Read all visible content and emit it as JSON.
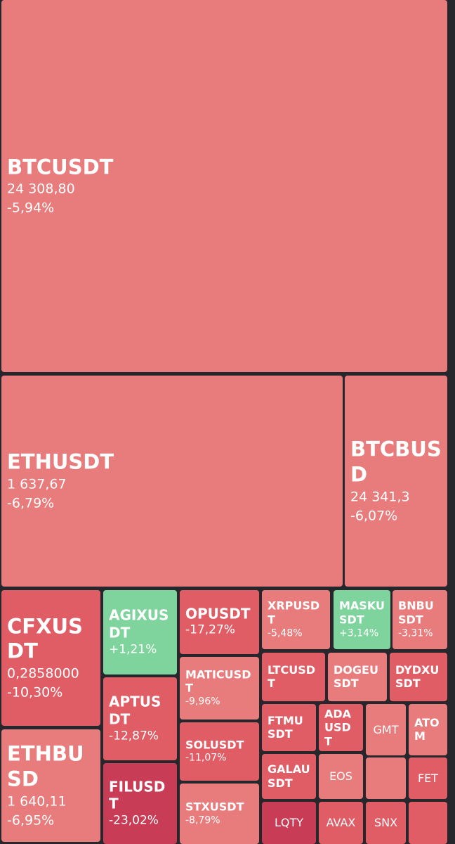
{
  "colors": {
    "background": "#26272c",
    "down_light": "#e87b7b",
    "down_mid": "#e15d66",
    "down_strong": "#c83c56",
    "up": "#7ed49c"
  },
  "chart_data": {
    "type": "treemap",
    "tiles": [
      {
        "symbol": "BTCUSDT",
        "price": "24 308,80",
        "change": "-5,94%",
        "change_value": -5.94
      },
      {
        "symbol": "ETHUSDT",
        "price": "1 637,67",
        "change": "-6,79%",
        "change_value": -6.79
      },
      {
        "symbol": "BTCBUSD",
        "price": "24 341,3",
        "change": "-6,07%",
        "change_value": -6.07
      },
      {
        "symbol": "CFXUSDT",
        "price": "0,2858000",
        "change": "-10,30%",
        "change_value": -10.3
      },
      {
        "symbol": "ETHBUSD",
        "price": "1 640,11",
        "change": "-6,95%",
        "change_value": -6.95
      },
      {
        "symbol": "AGIXUSDT",
        "price": "",
        "change": "+1,21%",
        "change_value": 1.21
      },
      {
        "symbol": "APTUSDT",
        "price": "",
        "change": "-12,87%",
        "change_value": -12.87
      },
      {
        "symbol": "FILUSDT",
        "price": "",
        "change": "-23,02%",
        "change_value": -23.02
      },
      {
        "symbol": "OPUSDT",
        "price": "",
        "change": "-17,27%",
        "change_value": -17.27
      },
      {
        "symbol": "MATICUSDT",
        "price": "",
        "change": "-9,96%",
        "change_value": -9.96
      },
      {
        "symbol": "SOLUSDT",
        "price": "",
        "change": "-11,07%",
        "change_value": -11.07
      },
      {
        "symbol": "STXUSDT",
        "price": "",
        "change": "-8,79%",
        "change_value": -8.79
      },
      {
        "symbol": "XRPUSDT",
        "price": "",
        "change": "-5,48%",
        "change_value": -5.48
      },
      {
        "symbol": "MASKUSDT",
        "price": "",
        "change": "+3,14%",
        "change_value": 3.14
      },
      {
        "symbol": "BNBUSDT",
        "price": "",
        "change": "-3,31%",
        "change_value": -3.31
      },
      {
        "symbol": "LTCUSDT",
        "price": "",
        "change": "",
        "change_value": null
      },
      {
        "symbol": "DOGEUSDT",
        "price": "",
        "change": "",
        "change_value": null
      },
      {
        "symbol": "DYDXUSDT",
        "price": "",
        "change": "",
        "change_value": null
      },
      {
        "symbol": "FTMUSDT",
        "price": "",
        "change": "",
        "change_value": null
      },
      {
        "symbol": "ADAUSDT",
        "price": "",
        "change": "",
        "change_value": null
      },
      {
        "symbol": "GMT",
        "price": "",
        "change": "",
        "change_value": null
      },
      {
        "symbol": "ATOM",
        "price": "",
        "change": "",
        "change_value": null
      },
      {
        "symbol": "GALAUSDT",
        "price": "",
        "change": "",
        "change_value": null
      },
      {
        "symbol": "EOS",
        "price": "",
        "change": "",
        "change_value": null
      },
      {
        "symbol": "",
        "price": "",
        "change": "",
        "change_value": null
      },
      {
        "symbol": "FET",
        "price": "",
        "change": "",
        "change_value": null
      },
      {
        "symbol": "LQTY",
        "price": "",
        "change": "",
        "change_value": null
      },
      {
        "symbol": "AVAX",
        "price": "",
        "change": "",
        "change_value": null
      },
      {
        "symbol": "SNX",
        "price": "",
        "change": "",
        "change_value": null
      },
      {
        "symbol": "",
        "price": "",
        "change": "",
        "change_value": null
      }
    ]
  }
}
